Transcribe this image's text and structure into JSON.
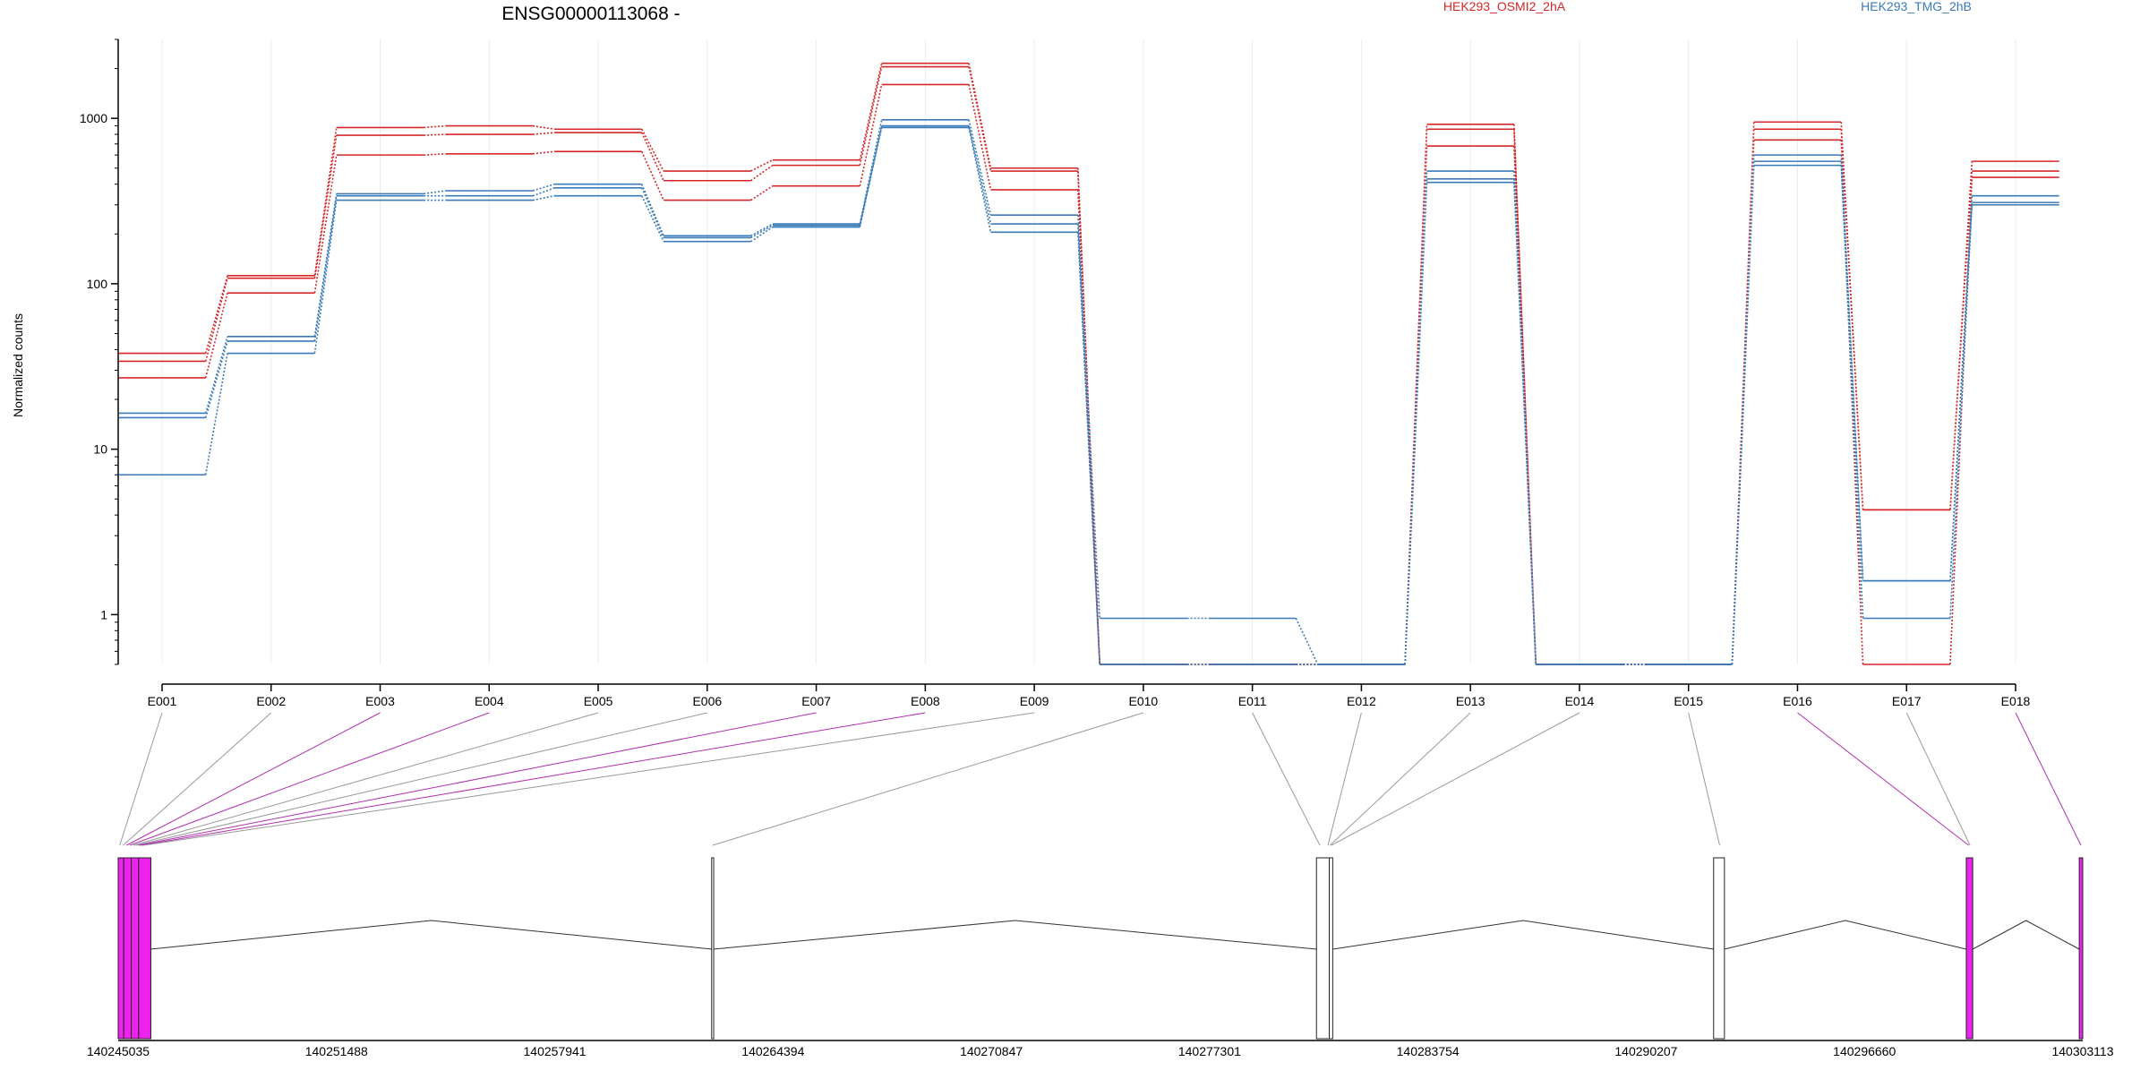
{
  "chart_data": {
    "type": "line",
    "title": "ENSG00000113068 -",
    "ylabel": "Normalized counts",
    "xlabel": "",
    "y_scale": "log",
    "ylim": [
      0.5,
      3000
    ],
    "y_ticks": [
      1,
      10,
      100,
      1000
    ],
    "y_tick_labels": [
      "1",
      "10",
      "100",
      "1000"
    ],
    "exons": [
      "E001",
      "E002",
      "E003",
      "E004",
      "E005",
      "E006",
      "E007",
      "E008",
      "E009",
      "E010",
      "E011",
      "E012",
      "E013",
      "E014",
      "E015",
      "E016",
      "E017",
      "E018"
    ],
    "legend": [
      {
        "name": "HEK293_OSMI2_2hA",
        "color": "#d62728"
      },
      {
        "name": "HEK293_TMG_2hB",
        "color": "#3a7ab8"
      }
    ],
    "legend_placement": "top-right",
    "grid": "vertical",
    "series": [
      {
        "group": "HEK293_OSMI2_2hA",
        "color": "#d62728",
        "values": [
          38,
          112,
          880,
          900,
          860,
          480,
          560,
          2150,
          500,
          0.5,
          0.5,
          0.5,
          920,
          0.5,
          0.5,
          950,
          4.3,
          550
        ]
      },
      {
        "group": "HEK293_OSMI2_2hA",
        "color": "#d62728",
        "values": [
          34,
          108,
          790,
          800,
          820,
          420,
          520,
          2050,
          480,
          0.5,
          0.5,
          0.5,
          860,
          0.5,
          0.5,
          860,
          4.3,
          480
        ]
      },
      {
        "group": "HEK293_OSMI2_2hA",
        "color": "#d62728",
        "values": [
          27,
          88,
          600,
          610,
          630,
          320,
          390,
          1600,
          370,
          0.5,
          0.5,
          0.5,
          680,
          0.5,
          0.5,
          740,
          0.5,
          440
        ]
      },
      {
        "group": "HEK293_TMG_2hB",
        "color": "#3a7ab8",
        "values": [
          16.5,
          48,
          350,
          365,
          400,
          195,
          230,
          980,
          260,
          0.95,
          0.95,
          0.5,
          480,
          0.5,
          0.5,
          600,
          1.6,
          340
        ]
      },
      {
        "group": "HEK293_TMG_2hB",
        "color": "#3a7ab8",
        "values": [
          15.5,
          45,
          340,
          340,
          380,
          190,
          225,
          900,
          230,
          0.5,
          0.5,
          0.5,
          430,
          0.5,
          0.5,
          550,
          1.6,
          310
        ]
      },
      {
        "group": "HEK293_TMG_2hB",
        "color": "#3a7ab8",
        "values": [
          7,
          38,
          320,
          320,
          340,
          180,
          220,
          880,
          205,
          0.5,
          0.5,
          0.5,
          410,
          0.5,
          0.5,
          520,
          0.95,
          300
        ]
      }
    ],
    "gene_model": {
      "coordinate_ticks": [
        "140245035",
        "140251488",
        "140257941",
        "140264394",
        "140270847",
        "140277301",
        "140283754",
        "140290207",
        "140296660",
        "140303113"
      ],
      "genomic_range": [
        140245035,
        140303113
      ],
      "highlight_color": "#ee22ee",
      "exon_blocks": [
        {
          "start": 140245035,
          "end": 140245200,
          "highlight": true
        },
        {
          "start": 140245200,
          "end": 140245420,
          "highlight": true
        },
        {
          "start": 140245420,
          "end": 140245640,
          "highlight": true
        },
        {
          "start": 140245640,
          "end": 140246000,
          "highlight": true
        },
        {
          "start": 140262580,
          "end": 140262640,
          "highlight": false
        },
        {
          "start": 140280460,
          "end": 140280840,
          "highlight": false
        },
        {
          "start": 140280840,
          "end": 140280940,
          "highlight": false
        },
        {
          "start": 140292200,
          "end": 140292520,
          "highlight": false
        },
        {
          "start": 140299670,
          "end": 140299860,
          "highlight": true
        },
        {
          "start": 140303010,
          "end": 140303113,
          "highlight": true
        }
      ],
      "exon_links": [
        {
          "exon": "E001",
          "pos": 140245080,
          "highlight": false
        },
        {
          "exon": "E002",
          "pos": 140245180,
          "highlight": false
        },
        {
          "exon": "E003",
          "pos": 140245280,
          "highlight": true
        },
        {
          "exon": "E004",
          "pos": 140245380,
          "highlight": true
        },
        {
          "exon": "E005",
          "pos": 140245480,
          "highlight": false
        },
        {
          "exon": "E006",
          "pos": 140245560,
          "highlight": false
        },
        {
          "exon": "E007",
          "pos": 140245640,
          "highlight": true
        },
        {
          "exon": "E008",
          "pos": 140245720,
          "highlight": true
        },
        {
          "exon": "E009",
          "pos": 140245800,
          "highlight": false
        },
        {
          "exon": "E010",
          "pos": 140262610,
          "highlight": false
        },
        {
          "exon": "E011",
          "pos": 140280560,
          "highlight": false
        },
        {
          "exon": "E012",
          "pos": 140280800,
          "highlight": false
        },
        {
          "exon": "E013",
          "pos": 140280860,
          "highlight": false
        },
        {
          "exon": "E014",
          "pos": 140280900,
          "highlight": false
        },
        {
          "exon": "E015",
          "pos": 140292380,
          "highlight": false
        },
        {
          "exon": "E016",
          "pos": 140299740,
          "highlight": true
        },
        {
          "exon": "E017",
          "pos": 140299780,
          "highlight": false
        },
        {
          "exon": "E018",
          "pos": 140303060,
          "highlight": true
        }
      ],
      "introns": [
        {
          "start": 140246000,
          "end": 140262580
        },
        {
          "start": 140262640,
          "end": 140280460
        },
        {
          "start": 140280940,
          "end": 140292200
        },
        {
          "start": 140292520,
          "end": 140299670
        },
        {
          "start": 140299860,
          "end": 140303010
        }
      ]
    }
  }
}
